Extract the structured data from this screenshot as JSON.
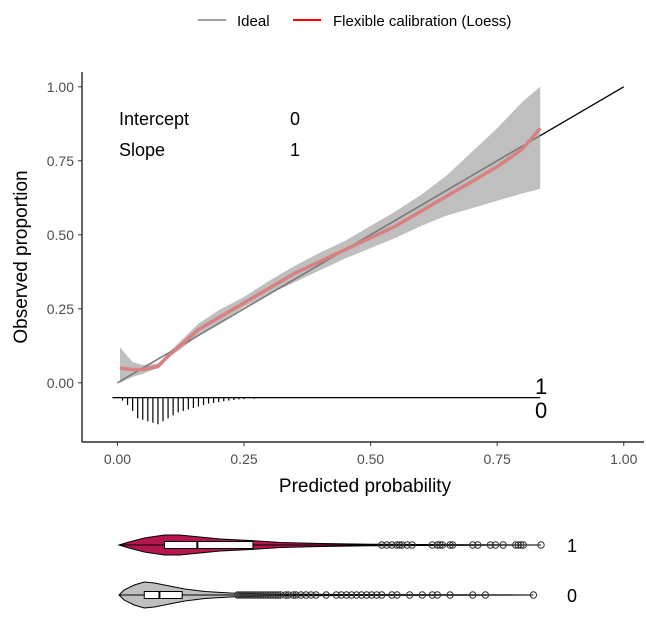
{
  "chart_data": {
    "type": "line",
    "title": "",
    "xlabel": "Predicted probability",
    "ylabel": "Observed proportion",
    "xlim": [
      -0.07,
      1.04
    ],
    "ylim": [
      -0.2,
      1.05
    ],
    "xticks": [
      "0.00",
      "0.25",
      "0.50",
      "0.75",
      "1.00"
    ],
    "xtick_values": [
      0,
      0.25,
      0.5,
      0.75,
      1.0
    ],
    "yticks": [
      "0.00",
      "0.25",
      "0.50",
      "0.75",
      "1.00"
    ],
    "ytick_values": [
      0,
      0.25,
      0.5,
      0.75,
      1.0
    ],
    "grid": false,
    "legend": {
      "position": "top",
      "entries": [
        {
          "label": "Ideal",
          "color": "#808080"
        },
        {
          "label": "Flexible calibration (Loess)",
          "color": "#ff0000"
        }
      ]
    },
    "annotations": {
      "intercept_label": "Intercept",
      "intercept_value": "0",
      "slope_label": "Slope",
      "slope_value": "1"
    },
    "series": [
      {
        "name": "Ideal",
        "color": "#808080",
        "x": [
          0,
          1
        ],
        "y": [
          0,
          1
        ]
      },
      {
        "name": "Flexible calibration (Loess)",
        "color": "#d98080",
        "x": [
          0.005,
          0.03,
          0.05,
          0.08,
          0.1,
          0.13,
          0.16,
          0.2,
          0.25,
          0.3,
          0.35,
          0.4,
          0.45,
          0.5,
          0.55,
          0.6,
          0.65,
          0.7,
          0.75,
          0.8,
          0.835
        ],
        "y": [
          0.05,
          0.045,
          0.045,
          0.055,
          0.09,
          0.135,
          0.18,
          0.22,
          0.27,
          0.32,
          0.37,
          0.41,
          0.45,
          0.49,
          0.53,
          0.58,
          0.63,
          0.68,
          0.73,
          0.79,
          0.86
        ],
        "ci_lower": [
          0.0,
          0.02,
          0.03,
          0.05,
          0.085,
          0.12,
          0.16,
          0.2,
          0.255,
          0.3,
          0.34,
          0.38,
          0.42,
          0.455,
          0.49,
          0.53,
          0.565,
          0.59,
          0.615,
          0.64,
          0.655
        ],
        "ci_upper": [
          0.12,
          0.07,
          0.06,
          0.065,
          0.1,
          0.15,
          0.2,
          0.245,
          0.29,
          0.345,
          0.395,
          0.44,
          0.48,
          0.53,
          0.58,
          0.635,
          0.7,
          0.78,
          0.86,
          0.95,
          1.0
        ],
        "ci_color": "#bfbfbf"
      }
    ],
    "rug": {
      "baseline_y": -0.05,
      "label_event": "1",
      "label_nonevent": "0",
      "x_end": 0.835,
      "nonevent_spikes_x": [
        0.01,
        0.02,
        0.03,
        0.04,
        0.05,
        0.06,
        0.07,
        0.08,
        0.09,
        0.1,
        0.11,
        0.12,
        0.13,
        0.14,
        0.15,
        0.16,
        0.17,
        0.18,
        0.19,
        0.2,
        0.21,
        0.22,
        0.23,
        0.24,
        0.25,
        0.27
      ],
      "nonevent_spikes_len": [
        0.01,
        0.025,
        0.045,
        0.07,
        0.075,
        0.08,
        0.085,
        0.09,
        0.08,
        0.07,
        0.06,
        0.05,
        0.045,
        0.04,
        0.035,
        0.03,
        0.025,
        0.02,
        0.018,
        0.015,
        0.012,
        0.01,
        0.008,
        0.006,
        0.005,
        0.004
      ]
    },
    "violins": {
      "xlim": [
        0,
        0.835
      ],
      "groups": [
        {
          "label": "1",
          "fill": "#b5164f",
          "box": {
            "q1": 0.09,
            "median": 0.155,
            "q3": 0.265
          },
          "outliers": [
            0.52,
            0.53,
            0.54,
            0.55,
            0.555,
            0.56,
            0.57,
            0.58,
            0.62,
            0.63,
            0.635,
            0.64,
            0.655,
            0.66,
            0.7,
            0.71,
            0.735,
            0.745,
            0.76,
            0.785,
            0.79,
            0.795,
            0.8,
            0.835
          ]
        },
        {
          "label": "0",
          "fill": "#bfbfbf",
          "box": {
            "q1": 0.05,
            "median": 0.08,
            "q3": 0.125
          },
          "outliers": [
            0.235,
            0.24,
            0.245,
            0.25,
            0.255,
            0.26,
            0.265,
            0.27,
            0.275,
            0.28,
            0.285,
            0.29,
            0.295,
            0.3,
            0.305,
            0.31,
            0.315,
            0.32,
            0.33,
            0.335,
            0.345,
            0.35,
            0.36,
            0.37,
            0.38,
            0.39,
            0.41,
            0.43,
            0.44,
            0.45,
            0.46,
            0.47,
            0.48,
            0.49,
            0.5,
            0.51,
            0.52,
            0.54,
            0.55,
            0.575,
            0.6,
            0.62,
            0.63,
            0.655,
            0.7,
            0.725,
            0.82
          ]
        }
      ]
    }
  }
}
